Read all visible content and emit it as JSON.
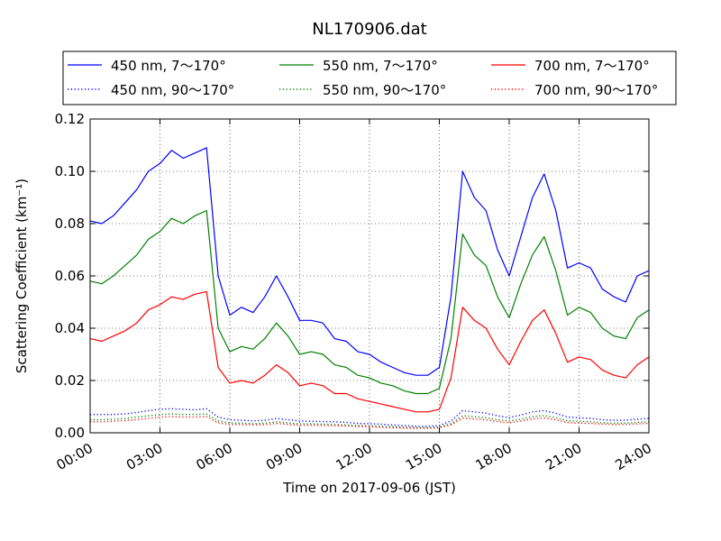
{
  "chart_data": {
    "type": "line",
    "title": "NL170906.dat",
    "xlabel": "Time on 2017-09-06 (JST)",
    "ylabel": "Scattering Coefficient (km⁻¹)",
    "xlim": [
      0,
      24
    ],
    "ylim": [
      0,
      0.12
    ],
    "x_ticks": [
      0,
      3,
      6,
      9,
      12,
      15,
      18,
      21,
      24
    ],
    "x_tick_labels": [
      "00:00",
      "03:00",
      "06:00",
      "09:00",
      "12:00",
      "15:00",
      "18:00",
      "21:00",
      "24:00"
    ],
    "y_ticks": [
      0,
      0.02,
      0.04,
      0.06,
      0.08,
      0.1,
      0.12
    ],
    "y_tick_labels": [
      "0.00",
      "0.02",
      "0.04",
      "0.06",
      "0.08",
      "0.10",
      "0.12"
    ],
    "grid": true,
    "legend_position": "top, above plot (3 columns)",
    "x": [
      0,
      0.5,
      1,
      1.5,
      2,
      2.5,
      3,
      3.5,
      4,
      4.5,
      5,
      5.5,
      6,
      6.5,
      7,
      7.5,
      8,
      8.5,
      9,
      9.5,
      10,
      10.5,
      11,
      11.5,
      12,
      12.5,
      13,
      13.5,
      14,
      14.5,
      15,
      15.5,
      16,
      16.5,
      17,
      17.5,
      18,
      18.5,
      19,
      19.5,
      20,
      20.5,
      21,
      21.5,
      22,
      22.5,
      23,
      23.5,
      24
    ],
    "series": [
      {
        "name": "450 nm, 7～170°",
        "color": "#0000ff",
        "style": "solid",
        "values": [
          0.081,
          0.08,
          0.083,
          0.088,
          0.093,
          0.1,
          0.103,
          0.108,
          0.105,
          0.107,
          0.109,
          0.06,
          0.045,
          0.048,
          0.046,
          0.052,
          0.06,
          0.052,
          0.043,
          0.043,
          0.042,
          0.036,
          0.035,
          0.031,
          0.03,
          0.027,
          0.025,
          0.023,
          0.022,
          0.022,
          0.025,
          0.052,
          0.1,
          0.09,
          0.085,
          0.07,
          0.06,
          0.075,
          0.09,
          0.099,
          0.085,
          0.063,
          0.065,
          0.063,
          0.055,
          0.052,
          0.05,
          0.06,
          0.062
        ]
      },
      {
        "name": "450 nm, 90～170°",
        "color": "#0000ff",
        "style": "dotted",
        "values": [
          0.007,
          0.007,
          0.007,
          0.0072,
          0.0078,
          0.0085,
          0.009,
          0.0092,
          0.009,
          0.0088,
          0.0092,
          0.006,
          0.005,
          0.0048,
          0.0046,
          0.0048,
          0.0055,
          0.005,
          0.0045,
          0.0044,
          0.0043,
          0.0042,
          0.004,
          0.0036,
          0.0035,
          0.0033,
          0.003,
          0.0028,
          0.0025,
          0.0025,
          0.0028,
          0.0045,
          0.0085,
          0.008,
          0.0075,
          0.0065,
          0.0058,
          0.0068,
          0.008,
          0.0085,
          0.0075,
          0.006,
          0.0058,
          0.0055,
          0.005,
          0.0048,
          0.0048,
          0.0052,
          0.0055
        ]
      },
      {
        "name": "550 nm, 7～170°",
        "color": "#008000",
        "style": "solid",
        "values": [
          0.058,
          0.057,
          0.06,
          0.064,
          0.068,
          0.074,
          0.077,
          0.082,
          0.08,
          0.083,
          0.085,
          0.04,
          0.031,
          0.033,
          0.032,
          0.036,
          0.042,
          0.037,
          0.03,
          0.031,
          0.03,
          0.026,
          0.025,
          0.022,
          0.021,
          0.019,
          0.018,
          0.016,
          0.015,
          0.015,
          0.017,
          0.036,
          0.076,
          0.068,
          0.064,
          0.052,
          0.044,
          0.057,
          0.068,
          0.075,
          0.062,
          0.045,
          0.048,
          0.046,
          0.04,
          0.037,
          0.036,
          0.044,
          0.047
        ]
      },
      {
        "name": "550 nm, 90～170°",
        "color": "#008000",
        "style": "dotted",
        "values": [
          0.005,
          0.005,
          0.0052,
          0.0055,
          0.006,
          0.0065,
          0.007,
          0.0072,
          0.007,
          0.007,
          0.0072,
          0.0045,
          0.0038,
          0.0037,
          0.0035,
          0.0037,
          0.0042,
          0.0038,
          0.0034,
          0.0034,
          0.0033,
          0.0032,
          0.003,
          0.0028,
          0.0027,
          0.0025,
          0.0023,
          0.0021,
          0.002,
          0.002,
          0.0022,
          0.0035,
          0.0065,
          0.0062,
          0.0058,
          0.005,
          0.0045,
          0.0052,
          0.0062,
          0.0066,
          0.0058,
          0.0046,
          0.0044,
          0.0042,
          0.0038,
          0.0037,
          0.0037,
          0.004,
          0.0042
        ]
      },
      {
        "name": "700 nm, 7～170°",
        "color": "#ff0000",
        "style": "solid",
        "values": [
          0.036,
          0.035,
          0.037,
          0.039,
          0.042,
          0.047,
          0.049,
          0.052,
          0.051,
          0.053,
          0.054,
          0.025,
          0.019,
          0.02,
          0.019,
          0.022,
          0.026,
          0.023,
          0.018,
          0.019,
          0.018,
          0.015,
          0.015,
          0.013,
          0.012,
          0.011,
          0.01,
          0.009,
          0.008,
          0.008,
          0.009,
          0.021,
          0.048,
          0.043,
          0.04,
          0.032,
          0.026,
          0.035,
          0.043,
          0.047,
          0.038,
          0.027,
          0.029,
          0.028,
          0.024,
          0.022,
          0.021,
          0.026,
          0.029
        ]
      },
      {
        "name": "700 nm, 90～170°",
        "color": "#ff0000",
        "style": "dotted",
        "values": [
          0.0042,
          0.0042,
          0.0044,
          0.0047,
          0.005,
          0.0055,
          0.006,
          0.0062,
          0.006,
          0.006,
          0.0062,
          0.0038,
          0.0032,
          0.0031,
          0.003,
          0.0031,
          0.0036,
          0.0032,
          0.0029,
          0.0029,
          0.0028,
          0.0027,
          0.0026,
          0.0024,
          0.0023,
          0.0021,
          0.002,
          0.0018,
          0.0017,
          0.0017,
          0.0019,
          0.003,
          0.0056,
          0.0053,
          0.005,
          0.0043,
          0.0038,
          0.0045,
          0.0053,
          0.0057,
          0.005,
          0.0039,
          0.0037,
          0.0036,
          0.0033,
          0.0032,
          0.0032,
          0.0034,
          0.0036
        ]
      }
    ]
  }
}
